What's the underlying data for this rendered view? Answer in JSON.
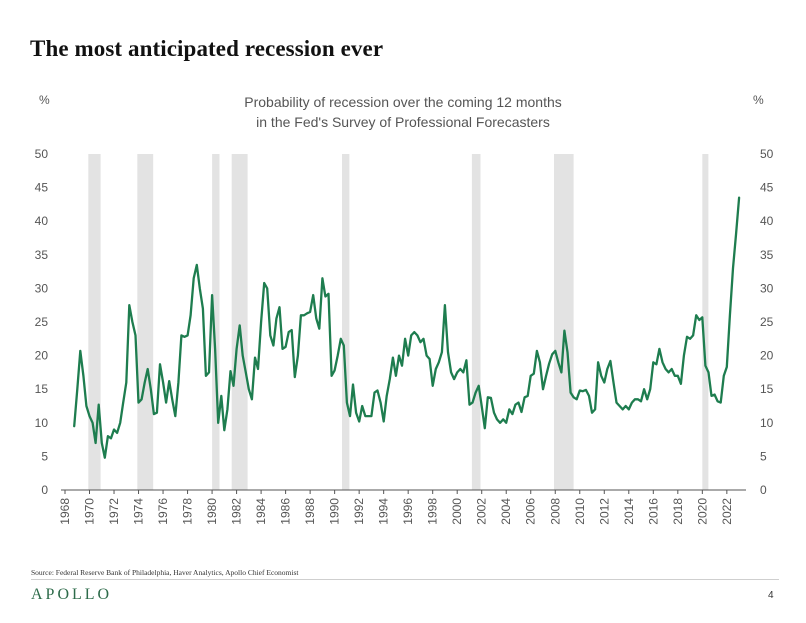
{
  "page": {
    "title": "The most anticipated recession ever",
    "source": "Source: Federal Reserve Bank of Philadelphia, Haver Analytics, Apollo Chief Economist",
    "brand": "APOLLO",
    "page_number": "4"
  },
  "colors": {
    "line": "#1e7d4f",
    "recession_band": "#e3e3e3",
    "brand": "#2d6b4a"
  },
  "chart_data": {
    "type": "line",
    "title_lines": [
      "Probability of recession over the coming 12 months",
      "in the Fed's Survey of Professional Forecasters"
    ],
    "y_unit_left": "%",
    "y_unit_right": "%",
    "ylim": [
      0,
      50
    ],
    "xlim": [
      1968,
      2023.4
    ],
    "y_ticks": [
      0,
      5,
      10,
      15,
      20,
      25,
      30,
      35,
      40,
      45,
      50
    ],
    "x_ticks": [
      "1968",
      "1970",
      "1972",
      "1974",
      "1976",
      "1978",
      "1980",
      "1982",
      "1984",
      "1986",
      "1988",
      "1990",
      "1992",
      "1994",
      "1996",
      "1998",
      "2000",
      "2002",
      "2004",
      "2006",
      "2008",
      "2010",
      "2012",
      "2014",
      "2016",
      "2018",
      "2020",
      "2022"
    ],
    "grid": false,
    "recession_bands": [
      [
        1969.9,
        1970.9
      ],
      [
        1973.9,
        1975.2
      ],
      [
        1980.0,
        1980.6
      ],
      [
        1981.6,
        1982.9
      ],
      [
        1990.6,
        1991.2
      ],
      [
        2001.2,
        2001.9
      ],
      [
        2007.9,
        2009.5
      ],
      [
        2020.0,
        2020.5
      ]
    ],
    "series": [
      {
        "values": [
          [
            1968.75,
            9.5
          ],
          [
            1969.0,
            15
          ],
          [
            1969.25,
            20.7
          ],
          [
            1969.5,
            17
          ],
          [
            1969.75,
            12.5
          ],
          [
            1970.0,
            11
          ],
          [
            1970.25,
            10
          ],
          [
            1970.5,
            7
          ],
          [
            1970.75,
            12.7
          ],
          [
            1971.0,
            7
          ],
          [
            1971.25,
            4.8
          ],
          [
            1971.5,
            8
          ],
          [
            1971.75,
            7.7
          ],
          [
            1972.0,
            9
          ],
          [
            1972.25,
            8.5
          ],
          [
            1972.5,
            10
          ],
          [
            1972.75,
            13
          ],
          [
            1973.0,
            16
          ],
          [
            1973.25,
            27.5
          ],
          [
            1973.5,
            25
          ],
          [
            1973.75,
            23
          ],
          [
            1974.0,
            13
          ],
          [
            1974.25,
            13.5
          ],
          [
            1974.5,
            16
          ],
          [
            1974.75,
            18
          ],
          [
            1975.0,
            15
          ],
          [
            1975.25,
            11.3
          ],
          [
            1975.5,
            11.5
          ],
          [
            1975.75,
            18.7
          ],
          [
            1976.0,
            16
          ],
          [
            1976.25,
            13
          ],
          [
            1976.5,
            16.2
          ],
          [
            1976.75,
            13.5
          ],
          [
            1977.0,
            11
          ],
          [
            1977.25,
            16
          ],
          [
            1977.5,
            23
          ],
          [
            1977.75,
            22.8
          ],
          [
            1978.0,
            23
          ],
          [
            1978.25,
            26
          ],
          [
            1978.5,
            31.5
          ],
          [
            1978.75,
            33.5
          ],
          [
            1979.0,
            30
          ],
          [
            1979.25,
            27
          ],
          [
            1979.5,
            17
          ],
          [
            1979.75,
            17.5
          ],
          [
            1980.0,
            29
          ],
          [
            1980.25,
            21
          ],
          [
            1980.5,
            10
          ],
          [
            1980.75,
            14
          ],
          [
            1981.0,
            8.9
          ],
          [
            1981.25,
            12
          ],
          [
            1981.5,
            17.7
          ],
          [
            1981.75,
            15.5
          ],
          [
            1982.0,
            21
          ],
          [
            1982.25,
            24.5
          ],
          [
            1982.5,
            20
          ],
          [
            1982.75,
            17.5
          ],
          [
            1983.0,
            15
          ],
          [
            1983.25,
            13.5
          ],
          [
            1983.5,
            19.7
          ],
          [
            1983.75,
            18
          ],
          [
            1984.0,
            25
          ],
          [
            1984.25,
            30.8
          ],
          [
            1984.5,
            30
          ],
          [
            1984.75,
            23
          ],
          [
            1985.0,
            21.5
          ],
          [
            1985.25,
            25.5
          ],
          [
            1985.5,
            27.2
          ],
          [
            1985.75,
            21
          ],
          [
            1986.0,
            21.3
          ],
          [
            1986.25,
            23.5
          ],
          [
            1986.5,
            23.8
          ],
          [
            1986.75,
            16.8
          ],
          [
            1987.0,
            20
          ],
          [
            1987.25,
            26
          ],
          [
            1987.5,
            26
          ],
          [
            1987.75,
            26.3
          ],
          [
            1988.0,
            26.5
          ],
          [
            1988.25,
            29
          ],
          [
            1988.5,
            25.5
          ],
          [
            1988.75,
            24
          ],
          [
            1989.0,
            31.5
          ],
          [
            1989.25,
            28.8
          ],
          [
            1989.5,
            29.2
          ],
          [
            1989.75,
            17
          ],
          [
            1990.0,
            17.8
          ],
          [
            1990.25,
            20
          ],
          [
            1990.5,
            22.5
          ],
          [
            1990.75,
            21.5
          ],
          [
            1991.0,
            13
          ],
          [
            1991.25,
            11
          ],
          [
            1991.5,
            15.7
          ],
          [
            1991.75,
            11.5
          ],
          [
            1992.0,
            10.2
          ],
          [
            1992.25,
            12.5
          ],
          [
            1992.5,
            11
          ],
          [
            1992.75,
            11
          ],
          [
            1993.0,
            11
          ],
          [
            1993.25,
            14.5
          ],
          [
            1993.5,
            14.8
          ],
          [
            1993.75,
            13
          ],
          [
            1994.0,
            10.2
          ],
          [
            1994.25,
            14
          ],
          [
            1994.5,
            16.5
          ],
          [
            1994.75,
            19.7
          ],
          [
            1995.0,
            17
          ],
          [
            1995.25,
            20
          ],
          [
            1995.5,
            18.5
          ],
          [
            1995.75,
            22.5
          ],
          [
            1996.0,
            20
          ],
          [
            1996.25,
            23
          ],
          [
            1996.5,
            23.5
          ],
          [
            1996.75,
            23
          ],
          [
            1997.0,
            22
          ],
          [
            1997.25,
            22.5
          ],
          [
            1997.5,
            20
          ],
          [
            1997.75,
            19.5
          ],
          [
            1998.0,
            15.5
          ],
          [
            1998.25,
            18
          ],
          [
            1998.5,
            19
          ],
          [
            1998.75,
            20.5
          ],
          [
            1999.0,
            27.5
          ],
          [
            1999.25,
            20.5
          ],
          [
            1999.5,
            17.5
          ],
          [
            1999.75,
            16.5
          ],
          [
            2000.0,
            17.5
          ],
          [
            2000.25,
            18
          ],
          [
            2000.5,
            17.5
          ],
          [
            2000.75,
            19.3
          ],
          [
            2001.0,
            12.7
          ],
          [
            2001.25,
            13
          ],
          [
            2001.5,
            14.5
          ],
          [
            2001.75,
            15.5
          ],
          [
            2002.0,
            12.5
          ],
          [
            2002.25,
            9.2
          ],
          [
            2002.5,
            13.8
          ],
          [
            2002.75,
            13.7
          ],
          [
            2003.0,
            11.5
          ],
          [
            2003.25,
            10.5
          ],
          [
            2003.5,
            10
          ],
          [
            2003.75,
            10.5
          ],
          [
            2004.0,
            10
          ],
          [
            2004.25,
            12
          ],
          [
            2004.5,
            11.3
          ],
          [
            2004.75,
            12.7
          ],
          [
            2005.0,
            13
          ],
          [
            2005.25,
            11.6
          ],
          [
            2005.5,
            13.8
          ],
          [
            2005.75,
            14
          ],
          [
            2006.0,
            17
          ],
          [
            2006.25,
            17.3
          ],
          [
            2006.5,
            20.7
          ],
          [
            2006.75,
            19
          ],
          [
            2007.0,
            15
          ],
          [
            2007.25,
            17
          ],
          [
            2007.5,
            18.8
          ],
          [
            2007.75,
            20.2
          ],
          [
            2008.0,
            20.7
          ],
          [
            2008.25,
            19
          ],
          [
            2008.5,
            17.5
          ],
          [
            2008.75,
            23.7
          ],
          [
            2009.0,
            20.5
          ],
          [
            2009.25,
            14.5
          ],
          [
            2009.5,
            13.8
          ],
          [
            2009.75,
            13.5
          ],
          [
            2010.0,
            14.8
          ],
          [
            2010.25,
            14.7
          ],
          [
            2010.5,
            14.9
          ],
          [
            2010.75,
            14
          ],
          [
            2011.0,
            11.5
          ],
          [
            2011.25,
            12
          ],
          [
            2011.5,
            19
          ],
          [
            2011.75,
            17
          ],
          [
            2012.0,
            16
          ],
          [
            2012.25,
            18
          ],
          [
            2012.5,
            19.2
          ],
          [
            2012.75,
            16
          ],
          [
            2013.0,
            13
          ],
          [
            2013.25,
            12.5
          ],
          [
            2013.5,
            12
          ],
          [
            2013.75,
            12.5
          ],
          [
            2014.0,
            12
          ],
          [
            2014.25,
            13
          ],
          [
            2014.5,
            13.5
          ],
          [
            2014.75,
            13.5
          ],
          [
            2015.0,
            13.2
          ],
          [
            2015.25,
            15
          ],
          [
            2015.5,
            13.5
          ],
          [
            2015.75,
            15
          ],
          [
            2016.0,
            19
          ],
          [
            2016.25,
            18.7
          ],
          [
            2016.5,
            21
          ],
          [
            2016.75,
            19
          ],
          [
            2017.0,
            18
          ],
          [
            2017.25,
            17.5
          ],
          [
            2017.5,
            18
          ],
          [
            2017.75,
            17
          ],
          [
            2018.0,
            17
          ],
          [
            2018.25,
            15.8
          ],
          [
            2018.5,
            20
          ],
          [
            2018.75,
            22.8
          ],
          [
            2019.0,
            22.5
          ],
          [
            2019.25,
            23
          ],
          [
            2019.5,
            26
          ],
          [
            2019.75,
            25.3
          ],
          [
            2020.0,
            25.7
          ],
          [
            2020.25,
            18.5
          ],
          [
            2020.5,
            17.5
          ],
          [
            2020.75,
            14
          ],
          [
            2021.0,
            14.2
          ],
          [
            2021.25,
            13.2
          ],
          [
            2021.5,
            13
          ],
          [
            2021.75,
            17
          ],
          [
            2022.0,
            18.3
          ],
          [
            2022.25,
            26
          ],
          [
            2022.5,
            33
          ],
          [
            2022.75,
            38
          ],
          [
            2023.0,
            43.5
          ]
        ]
      }
    ]
  }
}
